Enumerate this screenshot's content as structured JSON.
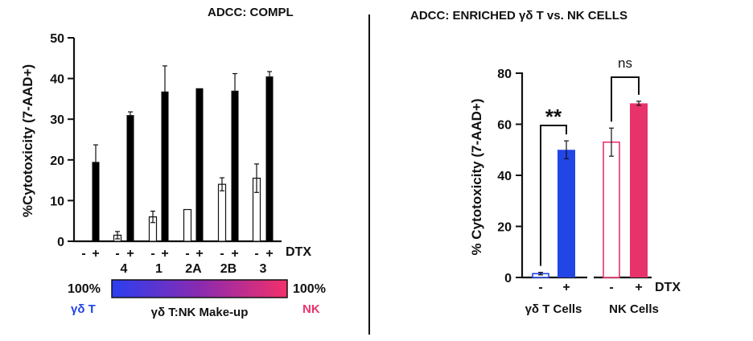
{
  "colors": {
    "gd": "#2245e6",
    "nk": "#e8336a",
    "black": "#000000",
    "white": "#ffffff"
  },
  "chart_data": [
    {
      "type": "bar",
      "title": "ADCC: COMPL",
      "ylabel": "%Cytotoxicity (7-AAD+)",
      "ylim": [
        0,
        50
      ],
      "yticks": [
        "0",
        "10",
        "20",
        "30",
        "40",
        "50"
      ],
      "dtx_label": "DTX",
      "categories": [
        "",
        "4",
        "1",
        "2A",
        "2B",
        "3"
      ],
      "series": [
        {
          "name": "-",
          "values": [
            null,
            1.5,
            6.0,
            7.8,
            14.0,
            15.5
          ],
          "errors": [
            null,
            0.9,
            1.4,
            0.0,
            1.6,
            3.5
          ]
        },
        {
          "name": "+",
          "values": [
            19.5,
            31.0,
            36.8,
            37.6,
            37.0,
            40.5
          ],
          "errors": [
            4.2,
            0.8,
            6.3,
            0.0,
            4.2,
            1.2
          ]
        }
      ],
      "makeup_legend": {
        "left_pct": "100%",
        "left_label": "γδ T",
        "right_pct": "100%",
        "right_label": "NK",
        "caption": "γδ T:NK Make-up"
      }
    },
    {
      "type": "bar",
      "title": "ADCC: ENRICHED γδ T vs. NK CELLS",
      "ylabel": "% Cytotoxicity (7-AAD+)",
      "ylim": [
        0,
        80
      ],
      "yticks": [
        "0",
        "20",
        "40",
        "60",
        "80"
      ],
      "dtx_label": "DTX",
      "categories": [
        "γδ T Cells",
        "NK Cells"
      ],
      "series": [
        {
          "name": "-",
          "values": [
            1.5,
            53.0
          ],
          "errors": [
            0.5,
            5.5
          ]
        },
        {
          "name": "+",
          "values": [
            50.0,
            68.2
          ],
          "errors": [
            3.5,
            0.8
          ]
        }
      ],
      "significance": [
        "**",
        "ns"
      ]
    }
  ]
}
